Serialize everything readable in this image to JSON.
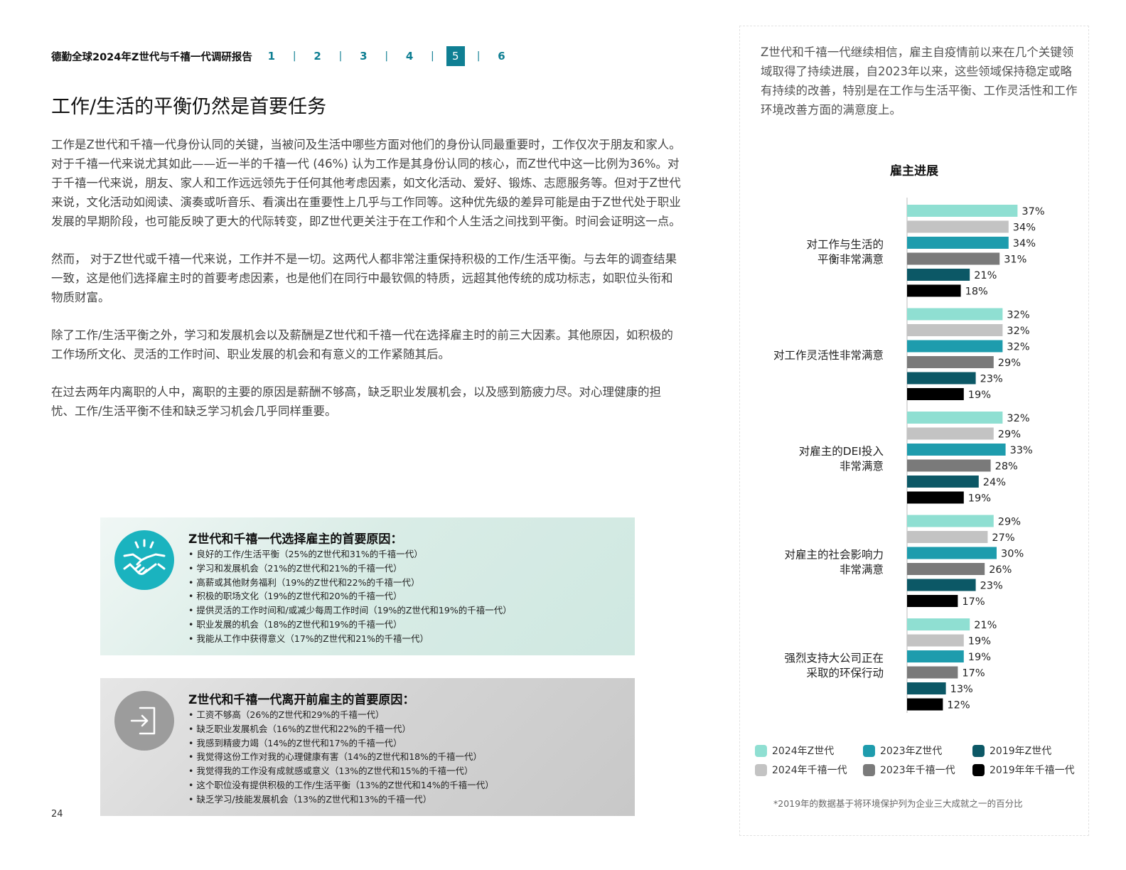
{
  "header": {
    "report_title": "德勤全球2024年Z世代与千禧一代调研报告",
    "pages": [
      "1",
      "2",
      "3",
      "4",
      "5",
      "6"
    ],
    "active_page": "5"
  },
  "main": {
    "heading": "工作/生活的平衡仍然是首要任务",
    "paragraphs": [
      "工作是Z世代和千禧一代身份认同的关键，当被问及生活中哪些方面对他们的身份认同最重要时，工作仅次于朋友和家人。对于千禧一代来说尤其如此——近一半的千禧一代 (46%) 认为工作是其身份认同的核心，而Z世代中这一比例为36%。对于千禧一代来说，朋友、家人和工作远远领先于任何其他考虑因素，如文化活动、爱好、锻炼、志愿服务等。但对于Z世代来说，文化活动如阅读、演奏或听音乐、看演出在重要性上几乎与工作同等。这种优先级的差异可能是由于Z世代处于职业发展的早期阶段，也可能反映了更大的代际转变，即Z世代更关注于在工作和个人生活之间找到平衡。时间会证明这一点。",
      "然而， 对于Z世代或千禧一代来说，工作并不是一切。这两代人都非常注重保持积极的工作/生活平衡。与去年的调查结果一致，这是他们选择雇主时的首要考虑因素，也是他们在同行中最钦佩的特质，远超其他传统的成功标志，如职位头衔和物质财富。",
      "除了工作/生活平衡之外，学习和发展机会以及薪酬是Z世代和千禧一代在选择雇主时的前三大因素。其他原因，如积极的工作场所文化、灵活的工作时间、职业发展的机会和有意义的工作紧随其后。",
      "在过去两年内离职的人中，离职的主要的原因是薪酬不够高，缺乏职业发展机会，以及感到筋疲力尽。对心理健康的担忧、工作/生活平衡不佳和缺乏学习机会几乎同样重要。"
    ],
    "page_number": "24"
  },
  "boxes": {
    "choose": {
      "icon": "handshake-icon",
      "title": "Z世代和千禧一代选择雇主的首要原因：",
      "items": [
        "良好的工作/生活平衡（25%的Z世代和31%的千禧一代）",
        "学习和发展机会（21%的Z世代和21%的千禧一代）",
        "高薪或其他财务福利（19%的Z世代和22%的千禧一代）",
        "积极的职场文化（19%的Z世代和20%的千禧一代）",
        "提供灵活的工作时间和/或减少每周工作时间（19%的Z世代和19%的千禧一代）",
        "职业发展的机会（18%的Z世代和19%的千禧一代）",
        "我能从工作中获得意义（17%的Z世代和21%的千禧一代）"
      ]
    },
    "leave": {
      "icon": "exit-door-icon",
      "title": "Z世代和千禧一代离开前雇主的首要原因：",
      "items": [
        "工资不够高（26%的Z世代和29%的千禧一代）",
        "缺乏职业发展机会（16%的Z世代和22%的千禧一代）",
        "我感到精疲力竭（14%的Z世代和17%的千禧一代）",
        "我觉得这份工作对我的心理健康有害（14%的Z世代和18%的千禧一代）",
        "我觉得我的工作没有成就感或意义（13%的Z世代和15%的千禧一代）",
        "这个职位没有提供积极的工作/生活平衡（13%的Z世代和14%的千禧一代）",
        "缺乏学习/技能发展机会（13%的Z世代和13%的千禧一代）"
      ]
    }
  },
  "right": {
    "intro": "Z世代和千禧一代继续相信，雇主自疫情前以来在几个关键领域取得了持续进展，自2023年以来，这些领域保持稳定或略有持续的改善，特别是在工作与生活平衡、工作灵活性和工作环境改善方面的满意度上。",
    "footnote": "*2019年的数据基于将环境保护列为企业三大成就之一的百分比"
  },
  "chart_data": {
    "type": "bar",
    "orientation": "horizontal",
    "title": "雇主进展",
    "value_suffix": "%",
    "categories": [
      [
        "对工作与生活的",
        "平衡非常满意"
      ],
      [
        "对工作灵活性非常满意"
      ],
      [
        "对雇主的DEI投入",
        "非常满意"
      ],
      [
        "对雇主的社会影响力",
        "非常满意"
      ],
      [
        "强烈支持大公司正在",
        "采取的环保行动"
      ]
    ],
    "series": [
      {
        "name": "2024年Z世代",
        "color": "#8fdfd2",
        "values": [
          37,
          32,
          32,
          29,
          21
        ]
      },
      {
        "name": "2024年千禧一代",
        "color": "#c3c3c3",
        "values": [
          34,
          32,
          29,
          27,
          19
        ]
      },
      {
        "name": "2023年Z世代",
        "color": "#1e9cad",
        "values": [
          34,
          32,
          33,
          30,
          19
        ]
      },
      {
        "name": "2023年千禧一代",
        "color": "#7a7a7a",
        "values": [
          31,
          29,
          28,
          26,
          17
        ]
      },
      {
        "name": "2019年Z世代",
        "color": "#0c5866",
        "values": [
          21,
          23,
          24,
          23,
          13
        ]
      },
      {
        "name": "2019年年千禧一代",
        "color": "#000000",
        "values": [
          18,
          19,
          19,
          17,
          12
        ]
      }
    ],
    "legend_position": "bottom",
    "legend_order": [
      0,
      2,
      4,
      1,
      3,
      5
    ],
    "grid": false
  }
}
